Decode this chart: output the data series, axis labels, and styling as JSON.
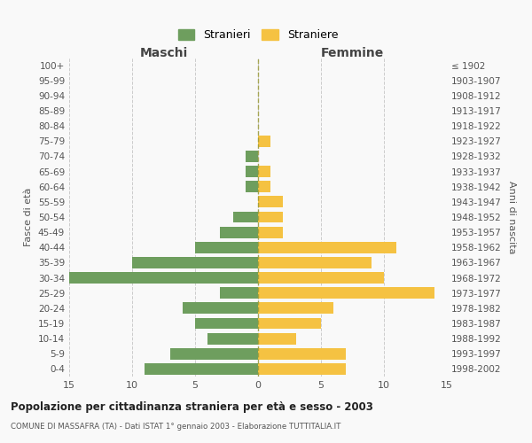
{
  "age_groups": [
    "0-4",
    "5-9",
    "10-14",
    "15-19",
    "20-24",
    "25-29",
    "30-34",
    "35-39",
    "40-44",
    "45-49",
    "50-54",
    "55-59",
    "60-64",
    "65-69",
    "70-74",
    "75-79",
    "80-84",
    "85-89",
    "90-94",
    "95-99",
    "100+"
  ],
  "birth_years": [
    "1998-2002",
    "1993-1997",
    "1988-1992",
    "1983-1987",
    "1978-1982",
    "1973-1977",
    "1968-1972",
    "1963-1967",
    "1958-1962",
    "1953-1957",
    "1948-1952",
    "1943-1947",
    "1938-1942",
    "1933-1937",
    "1928-1932",
    "1923-1927",
    "1918-1922",
    "1913-1917",
    "1908-1912",
    "1903-1907",
    "≤ 1902"
  ],
  "maschi": [
    9,
    7,
    4,
    5,
    6,
    3,
    15,
    10,
    5,
    3,
    2,
    0,
    1,
    1,
    1,
    0,
    0,
    0,
    0,
    0,
    0
  ],
  "femmine": [
    7,
    7,
    3,
    5,
    6,
    14,
    10,
    9,
    11,
    2,
    2,
    2,
    1,
    1,
    0,
    1,
    0,
    0,
    0,
    0,
    0
  ],
  "maschi_color": "#6e9e5e",
  "femmine_color": "#f5c242",
  "bg_color": "#f9f9f9",
  "grid_color": "#cccccc",
  "title": "Popolazione per cittadinanza straniera per età e sesso - 2003",
  "subtitle": "COMUNE DI MASSAFRA (TA) - Dati ISTAT 1° gennaio 2003 - Elaborazione TUTTITALIA.IT",
  "xlabel_left": "Maschi",
  "xlabel_right": "Femmine",
  "ylabel_left": "Fasce di età",
  "ylabel_right": "Anni di nascita",
  "xlim": 15,
  "legend_stranieri": "Stranieri",
  "legend_straniere": "Straniere",
  "bar_height": 0.75
}
